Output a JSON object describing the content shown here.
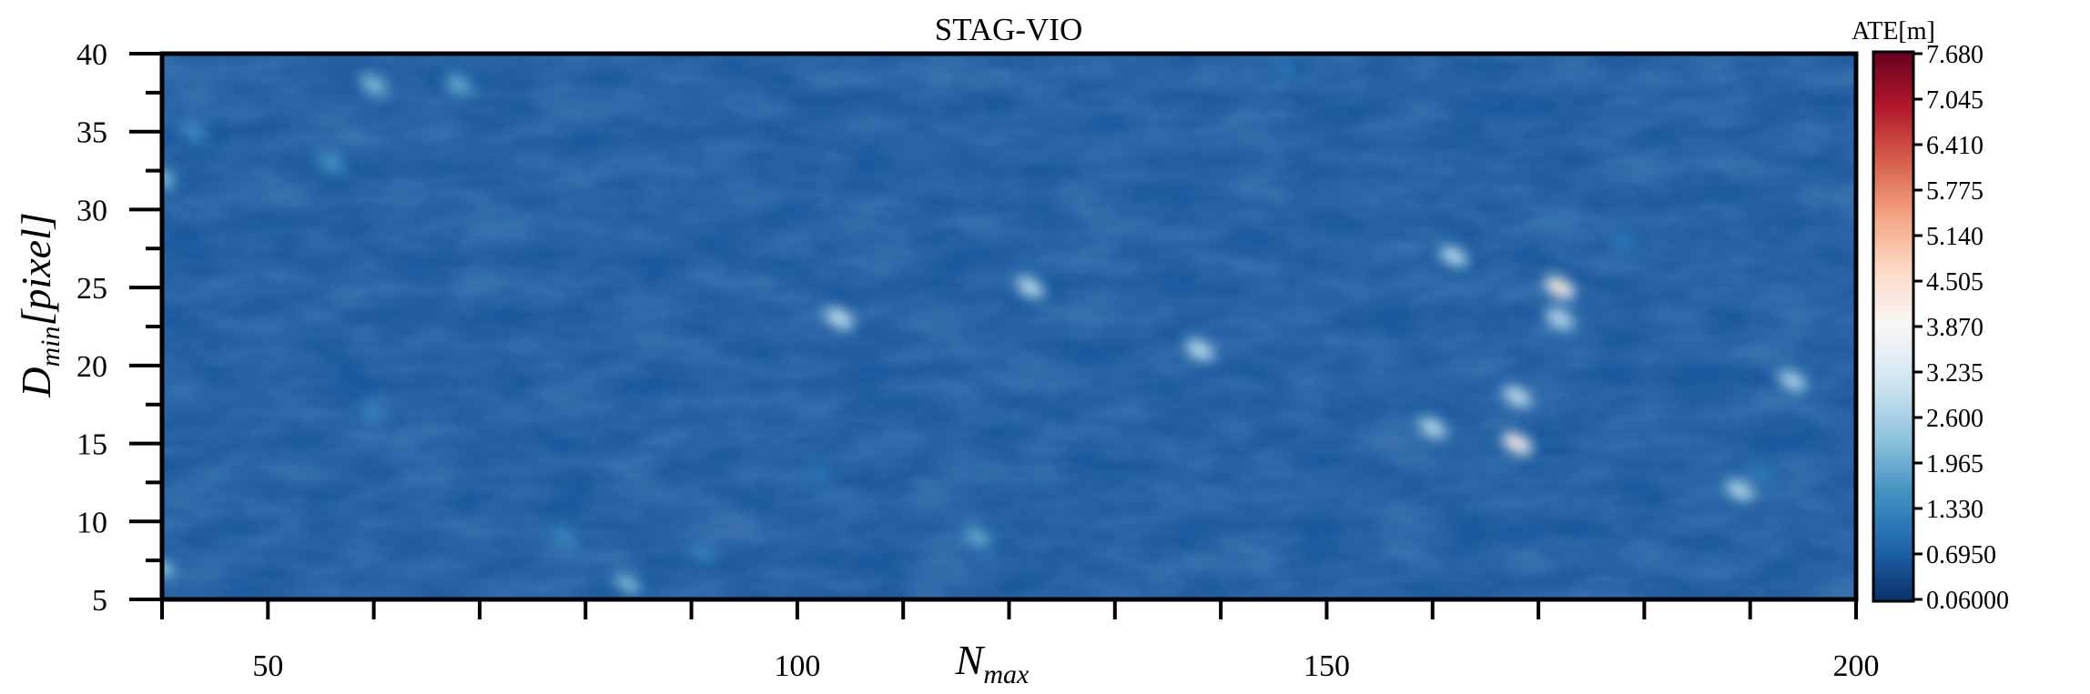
{
  "chart_data": {
    "type": "heatmap",
    "title": "STAG-VIO",
    "xlabel": "N",
    "xlabel_sub": "max",
    "ylabel": "D",
    "ylabel_sub": "min",
    "ylabel_unit": "[pixel]",
    "xlim": [
      40,
      200
    ],
    "ylim": [
      5,
      40
    ],
    "x_ticks": [
      50,
      100,
      150,
      200
    ],
    "y_ticks": [
      5,
      10,
      15,
      20,
      25,
      30,
      35,
      40
    ],
    "colorbar": {
      "title": "ATE[m]",
      "ticks": [
        "7.680",
        "7.045",
        "6.410",
        "5.775",
        "5.140",
        "4.505",
        "3.870",
        "3.235",
        "2.600",
        "1.965",
        "1.330",
        "0.6950",
        "0.06000"
      ],
      "min": 0.06,
      "max": 7.68,
      "colors": [
        "#08306b",
        "#2166ac",
        "#4393c3",
        "#92c5de",
        "#d1e5f0",
        "#f7f7f7",
        "#fddbc7",
        "#f4a582",
        "#d6604d",
        "#b2182b",
        "#67001f"
      ]
    },
    "background_value": 0.65,
    "hotspots": [
      {
        "x": 104,
        "y": 23,
        "value": 3.2
      },
      {
        "x": 122,
        "y": 25,
        "value": 3.1
      },
      {
        "x": 138,
        "y": 21,
        "value": 3.1
      },
      {
        "x": 160,
        "y": 16,
        "value": 3.0
      },
      {
        "x": 162,
        "y": 27,
        "value": 3.0
      },
      {
        "x": 168,
        "y": 18,
        "value": 3.2
      },
      {
        "x": 168,
        "y": 15,
        "value": 4.6
      },
      {
        "x": 172,
        "y": 25,
        "value": 4.8
      },
      {
        "x": 172,
        "y": 23,
        "value": 3.1
      },
      {
        "x": 189,
        "y": 12,
        "value": 3.0
      },
      {
        "x": 194,
        "y": 19,
        "value": 2.9
      },
      {
        "x": 60,
        "y": 38,
        "value": 2.4
      },
      {
        "x": 68,
        "y": 38,
        "value": 2.1
      },
      {
        "x": 56,
        "y": 33,
        "value": 1.7
      },
      {
        "x": 40,
        "y": 32,
        "value": 2.4
      },
      {
        "x": 43,
        "y": 35,
        "value": 1.6
      },
      {
        "x": 60,
        "y": 17,
        "value": 1.5
      },
      {
        "x": 84,
        "y": 6,
        "value": 2.3
      },
      {
        "x": 117,
        "y": 9,
        "value": 2.1
      },
      {
        "x": 40,
        "y": 7,
        "value": 2.4
      },
      {
        "x": 78,
        "y": 9,
        "value": 1.5
      },
      {
        "x": 91,
        "y": 8,
        "value": 1.4
      },
      {
        "x": 102,
        "y": 13,
        "value": 1.2
      },
      {
        "x": 146,
        "y": 39,
        "value": 1.2
      },
      {
        "x": 178,
        "y": 28,
        "value": 1.2
      },
      {
        "x": 191,
        "y": 13,
        "value": 1.3
      }
    ]
  }
}
